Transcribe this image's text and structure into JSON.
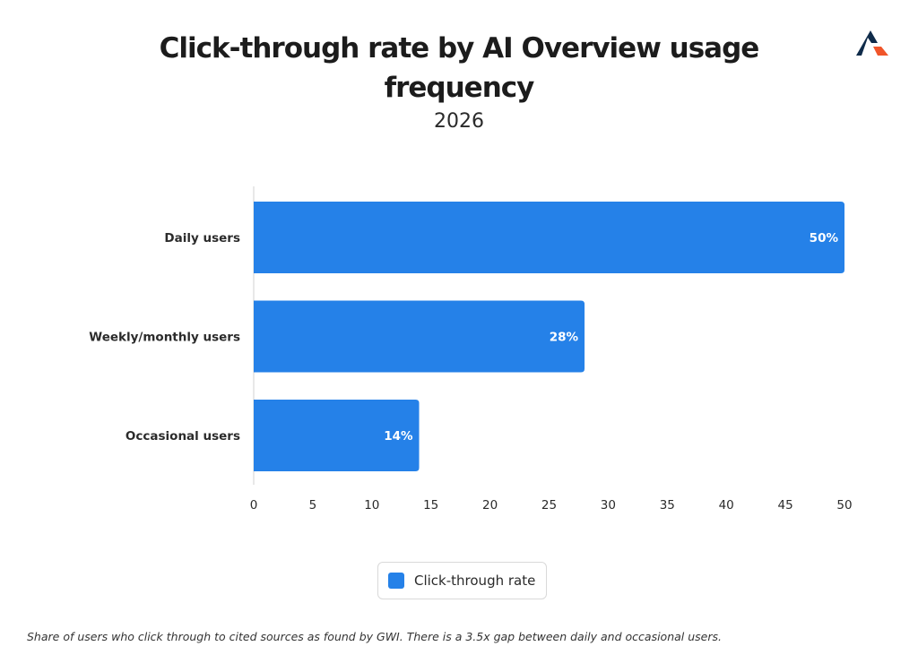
{
  "header": {
    "title": "Click-through rate by AI Overview usage frequency",
    "subtitle": "2026"
  },
  "legend": {
    "label": "Click-through rate"
  },
  "footnote": "Share of users who click through to cited sources as found by GWI. There is a 3.5x gap between daily and occasional users.",
  "colors": {
    "bar": "#2581e8",
    "axis": "#d0d0d0",
    "logo_dark": "#0f2b4a",
    "logo_accent": "#f0552a"
  },
  "icons": {
    "logo": "brand-logo-icon"
  },
  "chart_data": {
    "type": "bar",
    "orientation": "horizontal",
    "title": "Click-through rate by AI Overview usage frequency",
    "subtitle": "2026",
    "categories": [
      "Daily users",
      "Weekly/monthly users",
      "Occasional users"
    ],
    "series": [
      {
        "name": "Click-through rate",
        "values": [
          50,
          28,
          14
        ],
        "labels": [
          "50%",
          "28%",
          "14%"
        ]
      }
    ],
    "xlim": [
      0,
      50
    ],
    "xticks": [
      0,
      5,
      10,
      15,
      20,
      25,
      30,
      35,
      40,
      45,
      50
    ],
    "xlabel": "",
    "ylabel": "",
    "grid": false,
    "legend_position": "bottom"
  }
}
